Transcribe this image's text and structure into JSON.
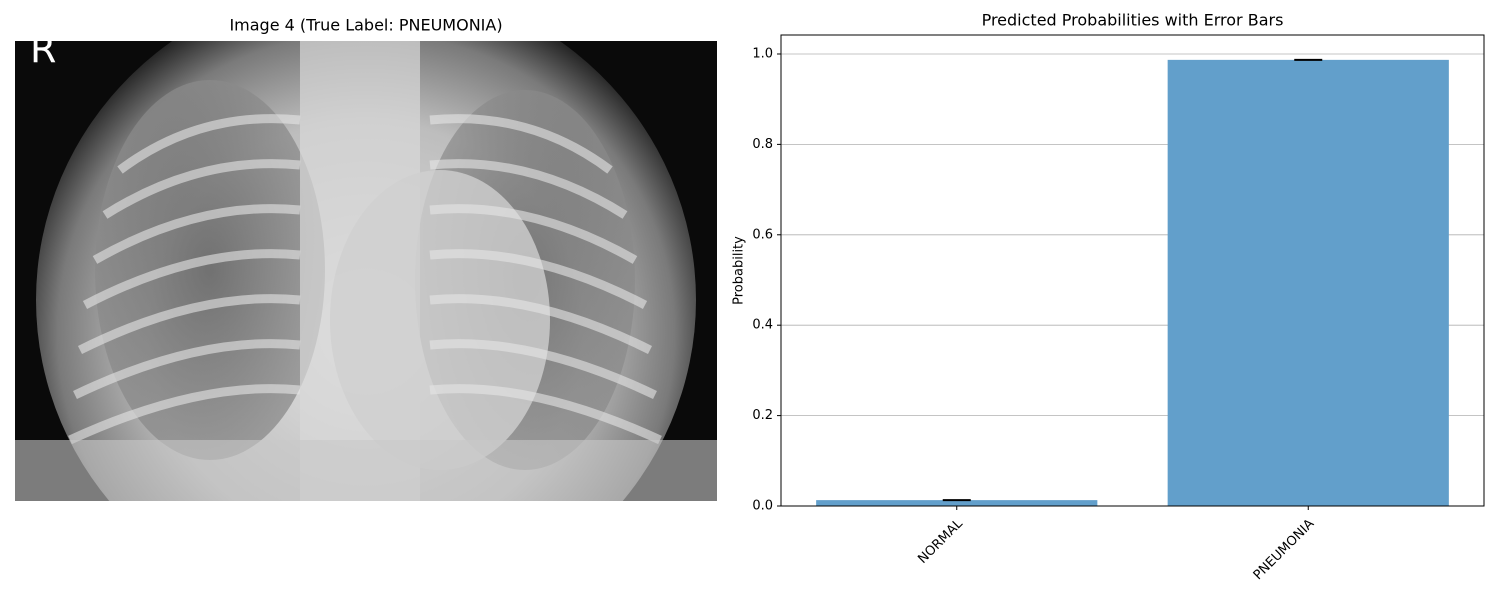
{
  "image_panel": {
    "title": "Image 4 (True Label: PNEUMONIA)",
    "marker": "R"
  },
  "chart_data": {
    "type": "bar",
    "title": "Predicted Probabilities with Error Bars",
    "ylabel": "Probability",
    "categories": [
      "NORMAL",
      "PNEUMONIA"
    ],
    "values": [
      0.013,
      0.987
    ],
    "errors": [
      0.001,
      0.001
    ],
    "color": "#629fcb",
    "xlim": [
      -0.5,
      1.5
    ],
    "ylim": [
      0,
      1.042
    ],
    "yticks": [
      {
        "value": 0,
        "label": "0.0"
      },
      0.2,
      0.4,
      0.6,
      0.8,
      {
        "value": 1,
        "label": "1.0"
      }
    ],
    "grid": true
  }
}
